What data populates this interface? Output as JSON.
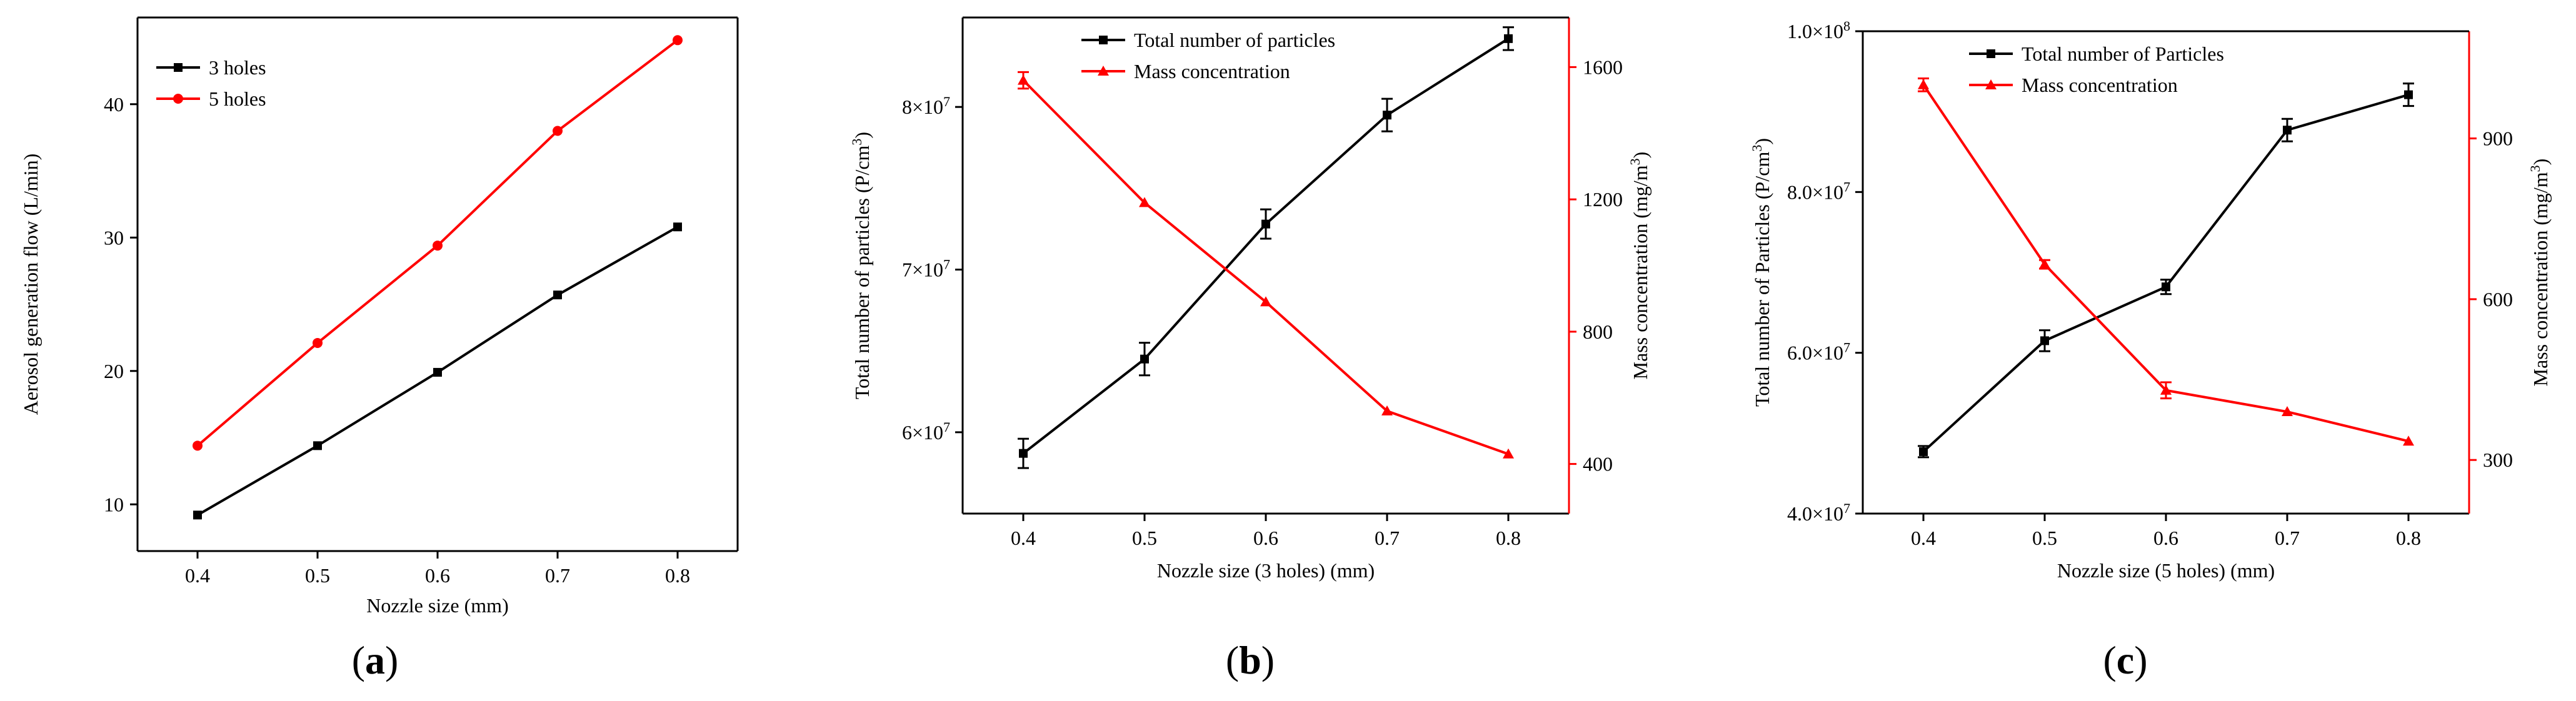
{
  "chart_data": [
    {
      "id": "a",
      "panel_label": "a",
      "type": "line",
      "xlabel": "Nozzle size (mm)",
      "ylabel": "Aerosol generation flow (L/min)",
      "x": [
        0.4,
        0.5,
        0.6,
        0.7,
        0.8
      ],
      "xticks": [
        "0.4",
        "0.5",
        "0.6",
        "0.7",
        "0.8"
      ],
      "xlim": [
        0.35,
        0.85
      ],
      "ylim": [
        6.5,
        46.5
      ],
      "yticks": [
        "10",
        "20",
        "30",
        "40"
      ],
      "ytick_values": [
        10,
        20,
        30,
        40
      ],
      "legend_position": "top-left",
      "series": [
        {
          "name": "3 holes",
          "color": "#000000",
          "marker": "square",
          "values": [
            9.2,
            14.4,
            19.9,
            25.7,
            30.8
          ]
        },
        {
          "name": "5 holes",
          "color": "#ff0000",
          "marker": "circle",
          "values": [
            14.4,
            22.1,
            29.4,
            38.0,
            44.8
          ]
        }
      ]
    },
    {
      "id": "b",
      "panel_label": "b",
      "type": "line",
      "xlabel": "Nozzle size (3 holes) (mm)",
      "ylabel_left": "Total number of particles (P/cm³)",
      "ylabel_right": "Mass concentration (mg/m³)",
      "x": [
        0.4,
        0.5,
        0.6,
        0.7,
        0.8
      ],
      "xticks": [
        "0.4",
        "0.5",
        "0.6",
        "0.7",
        "0.8"
      ],
      "xlim": [
        0.35,
        0.85
      ],
      "ylim_left": [
        55000000,
        85500000
      ],
      "ylim_right": [
        250,
        1750
      ],
      "yticks_left": [
        {
          "value": 60000000,
          "mantissa": "6×10",
          "exp": "7"
        },
        {
          "value": 70000000,
          "mantissa": "7×10",
          "exp": "7"
        },
        {
          "value": 80000000,
          "mantissa": "8×10",
          "exp": "7"
        }
      ],
      "yticks_right": [
        "400",
        "800",
        "1200",
        "1600"
      ],
      "ytick_values_right": [
        400,
        800,
        1200,
        1600
      ],
      "legend_position": "top-center",
      "series": [
        {
          "name": "Total number of particles",
          "color": "#000000",
          "marker": "square",
          "axis": "left",
          "values": [
            58700000,
            64500000,
            72800000,
            79500000,
            84200000
          ],
          "errors": [
            900000,
            1000000,
            900000,
            1000000,
            700000
          ]
        },
        {
          "name": "Mass concentration",
          "color": "#ff0000",
          "marker": "triangle",
          "axis": "right",
          "values": [
            1560,
            1190,
            890,
            560,
            430
          ],
          "errors": [
            25,
            0,
            0,
            0,
            0
          ]
        }
      ]
    },
    {
      "id": "c",
      "panel_label": "c",
      "type": "line",
      "xlabel": "Nozzle size (5 holes) (mm)",
      "ylabel_left": "Total number of Particles (P/cm³)",
      "ylabel_right": "Mass concentration (mg/m³)",
      "x": [
        0.4,
        0.5,
        0.6,
        0.7,
        0.8
      ],
      "xticks": [
        "0.4",
        "0.5",
        "0.6",
        "0.7",
        "0.8"
      ],
      "xlim": [
        0.35,
        0.85
      ],
      "ylim_left": [
        40000000,
        100000000
      ],
      "ylim_right": [
        200,
        1100
      ],
      "yticks_left": [
        {
          "value": 40000000,
          "mantissa": "4.0×10",
          "exp": "7"
        },
        {
          "value": 60000000,
          "mantissa": "6.0×10",
          "exp": "7"
        },
        {
          "value": 80000000,
          "mantissa": "8.0×10",
          "exp": "7"
        },
        {
          "value": 100000000,
          "mantissa": "1.0×10",
          "exp": "8"
        }
      ],
      "yticks_right": [
        "300",
        "600",
        "900"
      ],
      "ytick_values_right": [
        300,
        600,
        900
      ],
      "legend_position": "top-center",
      "series": [
        {
          "name": "Total number of Particles",
          "color": "#000000",
          "marker": "square",
          "axis": "left",
          "values": [
            47700000,
            61500000,
            68200000,
            87700000,
            92100000
          ],
          "errors": [
            700000,
            1300000,
            900000,
            1400000,
            1400000
          ]
        },
        {
          "name": "Mass concentration",
          "color": "#ff0000",
          "marker": "triangle",
          "axis": "right",
          "values": [
            1000,
            665,
            430,
            390,
            335
          ],
          "errors": [
            12,
            8,
            15,
            0,
            0
          ]
        }
      ]
    }
  ]
}
